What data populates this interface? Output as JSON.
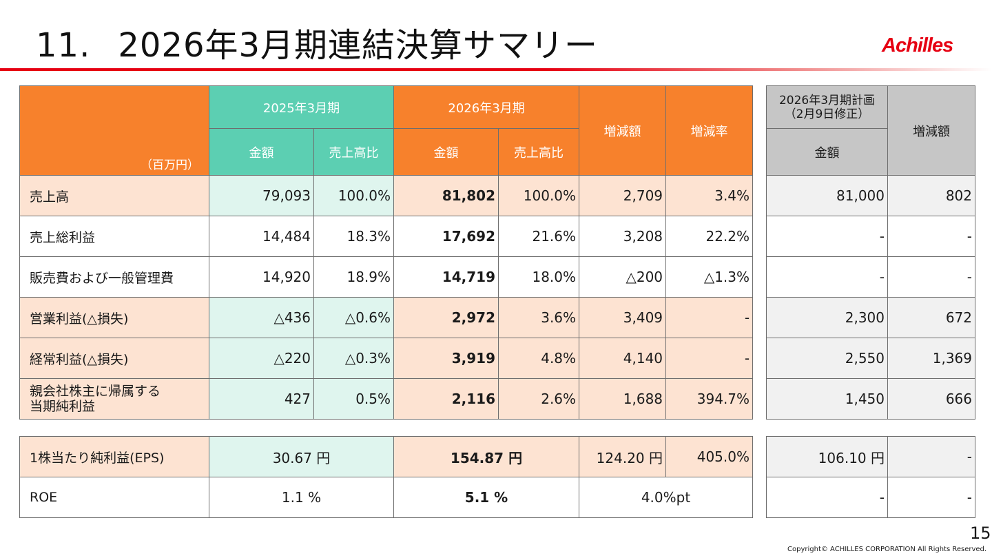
{
  "header": {
    "section_number": "11.",
    "title": "2026年3月期連結決算サマリー",
    "logo_text": "Achilles"
  },
  "main_table": {
    "unit": "（百万円）",
    "period_prev": "2025年3月期",
    "period_curr": "2026年3月期",
    "col_amount": "金額",
    "col_ratio": "売上高比",
    "col_change": "増減額",
    "col_change_rate": "増減率",
    "rows": [
      {
        "label": "売上高",
        "prev_amount": "79,093",
        "prev_ratio": "100.0%",
        "curr_amount": "81,802",
        "curr_ratio": "100.0%",
        "change": "2,709",
        "change_rate": "3.4%"
      },
      {
        "label": "売上総利益",
        "prev_amount": "14,484",
        "prev_ratio": "18.3%",
        "curr_amount": "17,692",
        "curr_ratio": "21.6%",
        "change": "3,208",
        "change_rate": "22.2%"
      },
      {
        "label": "販売費および一般管理費",
        "prev_amount": "14,920",
        "prev_ratio": "18.9%",
        "curr_amount": "14,719",
        "curr_ratio": "18.0%",
        "change": "△200",
        "change_rate": "△1.3%"
      },
      {
        "label": "営業利益(△損失)",
        "prev_amount": "△436",
        "prev_ratio": "△0.6%",
        "curr_amount": "2,972",
        "curr_ratio": "3.6%",
        "change": "3,409",
        "change_rate": "-"
      },
      {
        "label": "経常利益(△損失)",
        "prev_amount": "△220",
        "prev_ratio": "△0.3%",
        "curr_amount": "3,919",
        "curr_ratio": "4.8%",
        "change": "4,140",
        "change_rate": "-"
      },
      {
        "label_line1": "親会社株主に帰属する",
        "label_line2": "当期純利益",
        "prev_amount": "427",
        "prev_ratio": "0.5%",
        "curr_amount": "2,116",
        "curr_ratio": "2.6%",
        "change": "1,688",
        "change_rate": "394.7%"
      }
    ]
  },
  "plan_table": {
    "header_line1": "2026年3月期計画",
    "header_line2": "（2月9日修正）",
    "col_amount": "金額",
    "col_change": "増減額",
    "rows": [
      {
        "amount": "81,000",
        "change": "802"
      },
      {
        "amount": "-",
        "change": "-"
      },
      {
        "amount": "-",
        "change": "-"
      },
      {
        "amount": "2,300",
        "change": "672"
      },
      {
        "amount": "2,550",
        "change": "1,369"
      },
      {
        "amount": "1,450",
        "change": "666"
      }
    ]
  },
  "per_share_table": {
    "rows": [
      {
        "label": "1株当たり純利益(EPS)",
        "prev": "30.67 円",
        "curr": "154.87 円",
        "change": "124.20 円",
        "change_rate": "405.0%"
      },
      {
        "label": "ROE",
        "prev": "1.1 %",
        "curr": "5.1 %",
        "change": "4.0%pt"
      }
    ]
  },
  "per_share_plan_table": {
    "rows": [
      {
        "amount": "106.10 円",
        "change": "-"
      },
      {
        "amount": "-",
        "change": "-"
      }
    ]
  },
  "footer": {
    "page_number": "15",
    "copyright": "Copyright© ACHILLES CORPORATION All Rights  Reserved."
  }
}
